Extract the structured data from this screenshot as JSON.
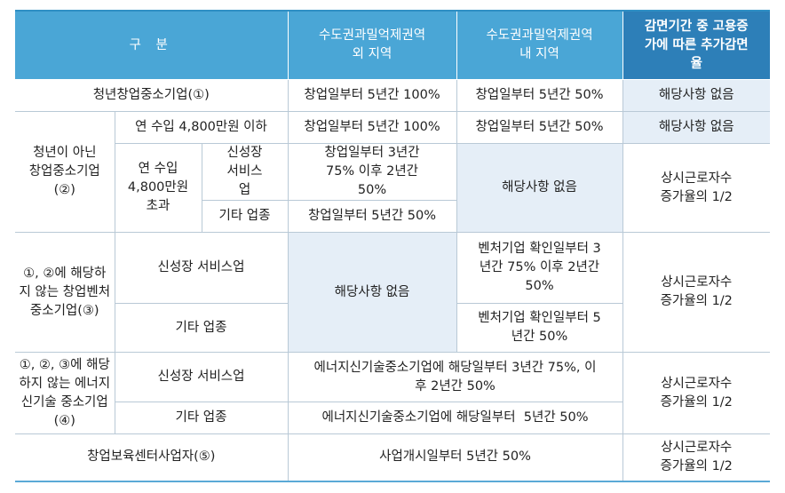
{
  "header": {
    "col1": "구 분",
    "col2": "수도권과밀억제권역 외 지역",
    "col3": "수도권과밀억제권역 내 지역",
    "col4": "감면기간 중 고용증가에 따른 추가감면율"
  },
  "rows": {
    "youth": {
      "label": "청년창업중소기업(①)",
      "outside": "창업일부터 5년간 100%",
      "inside": "창업일부터 5년간 50%",
      "extra": "해당사항 없음"
    },
    "non_youth": {
      "label": "청년이 아닌 창업중소기업 (②)",
      "low_income": {
        "label": "연 수입 4,800만원 이하",
        "outside": "창업일부터 5년간 100%",
        "inside": "창업일부터 5년간 50%",
        "extra": "해당사항 없음"
      },
      "high_income": {
        "label": "연 수입 4,800만원 초과",
        "growth": {
          "label": "신성장 서비스업",
          "outside": "창업일부터 3년간 75% 이후 2년간 50%"
        },
        "other": {
          "label": "기타 업종",
          "outside": "창업일부터 5년간 50%"
        },
        "inside": "해당사항 없음",
        "extra": "상시근로자수 증가율의 1/2"
      }
    },
    "venture": {
      "label": "①, ②에 해당하지 않는 창업벤처 중소기업(③)",
      "growth": {
        "label": "신성장 서비스업",
        "inside": "벤처기업 확인일부터 3년간 75% 이후 2년간 50%"
      },
      "other": {
        "label": "기타 업종",
        "inside": "벤처기업 확인일부터 5년간 50%"
      },
      "outside": "해당사항 없음",
      "extra": "상시근로자수 증가율의 1/2"
    },
    "energy": {
      "label": "①, ②, ③에 해당하지 않는 에너지신기술 중소기업(④)",
      "growth": {
        "label": "신성장 서비스업",
        "value": "에너지신기술중소기업에 해당일부터 3년간 75%, 이후 2년간 50%"
      },
      "other": {
        "label": "기타 업종",
        "value": "에너지신기술중소기업에 해당일부터  5년간 50%"
      },
      "extra": "상시근로자수 증가율의 1/2"
    },
    "incubator": {
      "label": "창업보육센터사업자(⑤)",
      "value": "사업개시일부터 5년간 50%",
      "extra": "상시근로자수 증가율의 1/2"
    }
  }
}
